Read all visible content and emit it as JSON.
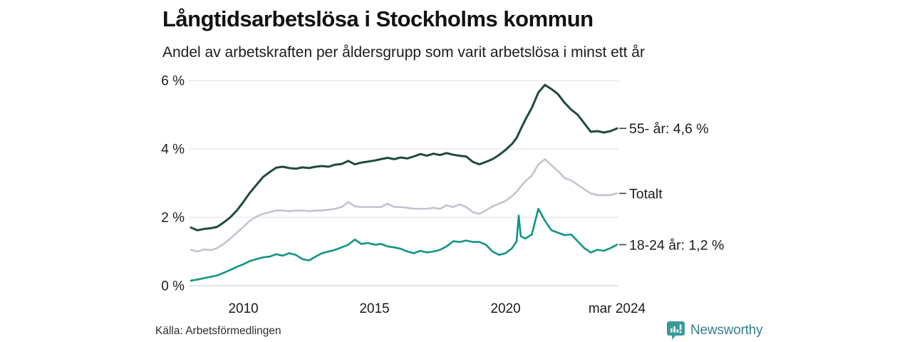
{
  "header": {
    "title": "Långtidsarbetslösa i Stockholms kommun",
    "subtitle": "Andel av arbetskraften per åldersgrupp som varit arbetslösa i minst ett år"
  },
  "chart_data": {
    "type": "line",
    "title": "Långtidsarbetslösa i Stockholms kommun",
    "subtitle": "Andel av arbetskraften per åldersgrupp som varit arbetslösa i minst ett år",
    "grid": true,
    "legend_position": "right-end-labels",
    "xlim": [
      2008,
      2024.25
    ],
    "ylim": [
      0,
      6.3
    ],
    "yticks": [
      {
        "value": 0,
        "label": "0 %"
      },
      {
        "value": 2,
        "label": "2 %"
      },
      {
        "value": 4,
        "label": "4 %"
      },
      {
        "value": 6,
        "label": "6 %"
      }
    ],
    "xticks": [
      {
        "x": 2010,
        "label": "2010"
      },
      {
        "x": 2015,
        "label": "2015"
      },
      {
        "x": 2020,
        "label": "2020"
      },
      {
        "x": 2024.25,
        "label": "mar 2024"
      }
    ],
    "x": [
      2008.0,
      2008.25,
      2008.5,
      2008.75,
      2009.0,
      2009.25,
      2009.5,
      2009.75,
      2010.0,
      2010.25,
      2010.5,
      2010.75,
      2011.0,
      2011.25,
      2011.5,
      2011.75,
      2012.0,
      2012.25,
      2012.5,
      2012.75,
      2013.0,
      2013.25,
      2013.5,
      2013.75,
      2014.0,
      2014.25,
      2014.5,
      2014.75,
      2015.0,
      2015.25,
      2015.5,
      2015.75,
      2016.0,
      2016.25,
      2016.5,
      2016.75,
      2017.0,
      2017.25,
      2017.5,
      2017.75,
      2018.0,
      2018.25,
      2018.5,
      2018.75,
      2019.0,
      2019.25,
      2019.5,
      2019.75,
      2020.0,
      2020.25,
      2020.42,
      2020.5,
      2020.58,
      2020.75,
      2021.0,
      2021.25,
      2021.5,
      2021.75,
      2022.0,
      2022.25,
      2022.5,
      2022.75,
      2023.0,
      2023.25,
      2023.5,
      2023.75,
      2024.0,
      2024.25
    ],
    "series": [
      {
        "name": "55- år",
        "end_label": "55- år: 4,6 %",
        "end_value_label": "4,6 %",
        "color": "#1f4a3d",
        "line_width": 3,
        "values": [
          1.7,
          1.62,
          1.66,
          1.68,
          1.72,
          1.85,
          2.0,
          2.2,
          2.45,
          2.72,
          2.95,
          3.18,
          3.32,
          3.45,
          3.48,
          3.44,
          3.42,
          3.46,
          3.44,
          3.48,
          3.5,
          3.48,
          3.54,
          3.56,
          3.65,
          3.55,
          3.6,
          3.63,
          3.66,
          3.7,
          3.74,
          3.7,
          3.75,
          3.72,
          3.78,
          3.85,
          3.8,
          3.86,
          3.82,
          3.88,
          3.83,
          3.8,
          3.78,
          3.62,
          3.55,
          3.62,
          3.7,
          3.82,
          3.97,
          4.15,
          4.32,
          4.45,
          4.58,
          4.85,
          5.2,
          5.65,
          5.87,
          5.75,
          5.6,
          5.35,
          5.15,
          5.0,
          4.75,
          4.5,
          4.52,
          4.48,
          4.52,
          4.6
        ]
      },
      {
        "name": "Totalt",
        "end_label": "Totalt",
        "end_value_label": "",
        "color": "#c5c2cf",
        "line_width": 2.6,
        "values": [
          1.05,
          1.0,
          1.06,
          1.04,
          1.1,
          1.22,
          1.38,
          1.55,
          1.72,
          1.9,
          2.02,
          2.1,
          2.15,
          2.2,
          2.2,
          2.18,
          2.2,
          2.2,
          2.18,
          2.2,
          2.2,
          2.22,
          2.25,
          2.3,
          2.45,
          2.32,
          2.3,
          2.3,
          2.3,
          2.3,
          2.4,
          2.3,
          2.3,
          2.28,
          2.25,
          2.25,
          2.25,
          2.28,
          2.25,
          2.35,
          2.3,
          2.38,
          2.3,
          2.15,
          2.1,
          2.2,
          2.32,
          2.4,
          2.48,
          2.62,
          2.75,
          2.82,
          2.9,
          3.05,
          3.22,
          3.55,
          3.7,
          3.52,
          3.35,
          3.15,
          3.08,
          2.95,
          2.82,
          2.7,
          2.65,
          2.65,
          2.65,
          2.7
        ]
      },
      {
        "name": "18-24 år",
        "end_label": "18-24 år: 1,2 %",
        "end_value_label": "1,2 %",
        "color": "#109482",
        "line_width": 2.6,
        "values": [
          0.15,
          0.18,
          0.22,
          0.26,
          0.3,
          0.38,
          0.46,
          0.55,
          0.63,
          0.72,
          0.78,
          0.83,
          0.85,
          0.92,
          0.88,
          0.95,
          0.9,
          0.78,
          0.74,
          0.85,
          0.95,
          1.0,
          1.05,
          1.12,
          1.2,
          1.35,
          1.22,
          1.25,
          1.2,
          1.22,
          1.15,
          1.12,
          1.08,
          1.0,
          0.95,
          1.02,
          0.97,
          1.0,
          1.05,
          1.15,
          1.3,
          1.28,
          1.32,
          1.28,
          1.28,
          1.2,
          1.0,
          0.9,
          0.95,
          1.1,
          1.3,
          2.05,
          1.45,
          1.38,
          1.5,
          2.25,
          1.9,
          1.62,
          1.55,
          1.48,
          1.5,
          1.3,
          1.1,
          0.97,
          1.05,
          1.02,
          1.1,
          1.2
        ]
      }
    ]
  },
  "style": {
    "grid_color": "#e4e4e9",
    "baseline_color": "#dcdce2",
    "tick_label_color": "#1a1a1a",
    "series_label_color": "#1b1b1b",
    "label_dash_color": "#4b4b4b",
    "brand_color": "#35808a",
    "brand_icon_color": "#3a9a8f"
  },
  "footer": {
    "source": "Källa: Arbetsförmedlingen",
    "brand": "Newsworthy"
  }
}
